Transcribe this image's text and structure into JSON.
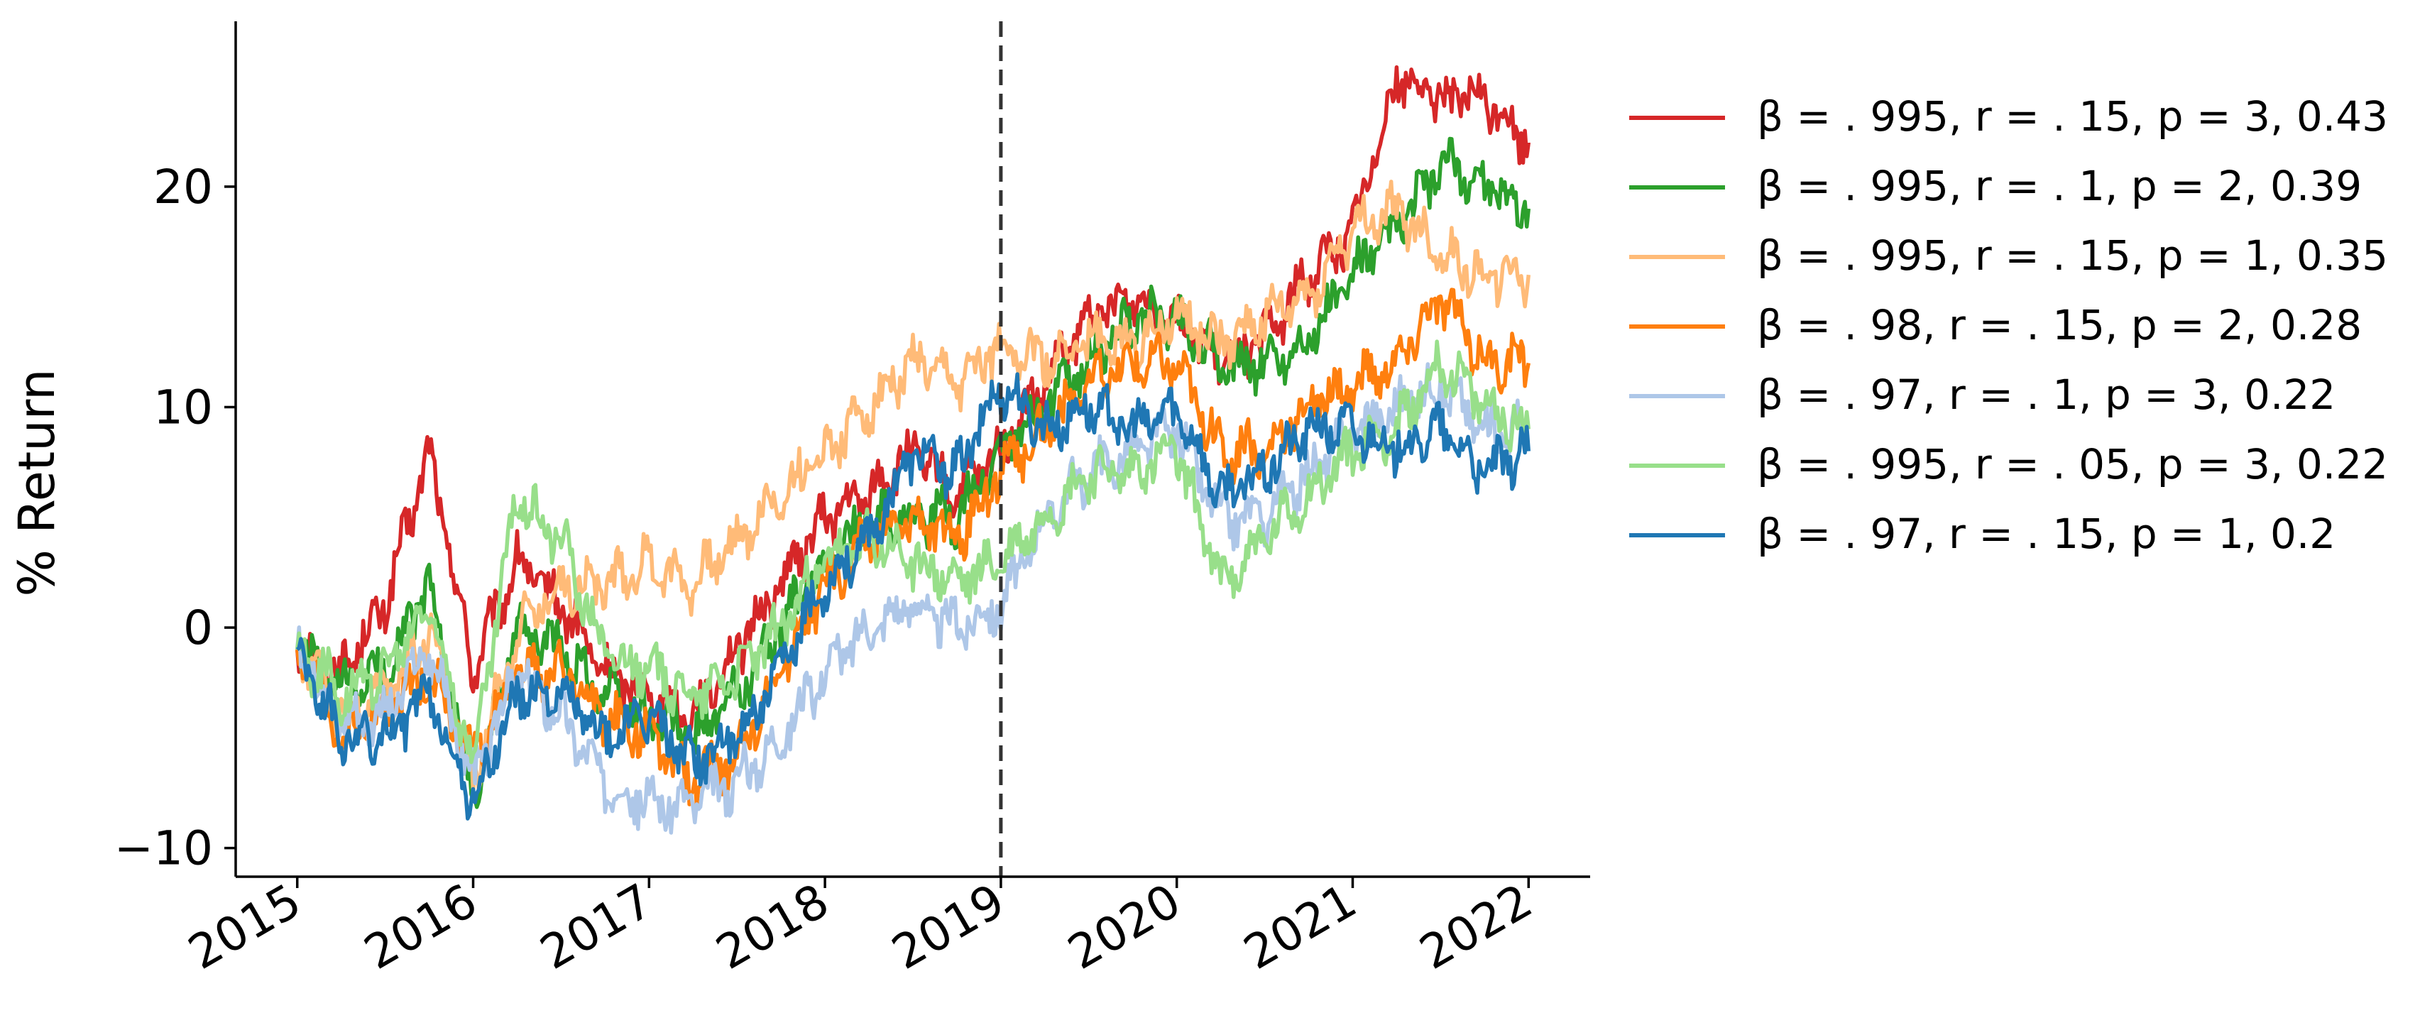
{
  "chart_data": {
    "type": "line",
    "title": "",
    "xlabel": "",
    "ylabel": "% Return",
    "xlim": [
      2014.65,
      2022.35
    ],
    "ylim": [
      -11.3,
      27.5
    ],
    "x_ticks": [
      {
        "value": 2015,
        "label": "2015"
      },
      {
        "value": 2016,
        "label": "2016"
      },
      {
        "value": 2017,
        "label": "2017"
      },
      {
        "value": 2018,
        "label": "2018"
      },
      {
        "value": 2019,
        "label": "2019"
      },
      {
        "value": 2020,
        "label": "2020"
      },
      {
        "value": 2021,
        "label": "2021"
      },
      {
        "value": 2022,
        "label": "2022"
      }
    ],
    "y_ticks": [
      {
        "value": -10,
        "label": "−10"
      },
      {
        "value": 0,
        "label": "0"
      },
      {
        "value": 10,
        "label": "10"
      },
      {
        "value": 20,
        "label": "20"
      }
    ],
    "vline": {
      "x": 2019.0,
      "style": "dashed",
      "color": "#333333"
    },
    "grid": false,
    "legend_position": "outside-right-top",
    "x": [
      2015.0,
      2015.25,
      2015.5,
      2015.75,
      2016.0,
      2016.25,
      2016.5,
      2016.75,
      2017.0,
      2017.25,
      2017.5,
      2017.75,
      2018.0,
      2018.25,
      2018.5,
      2018.75,
      2019.0,
      2019.25,
      2019.5,
      2019.75,
      2020.0,
      2020.25,
      2020.5,
      2020.75,
      2021.0,
      2021.25,
      2021.5,
      2021.75,
      2022.0
    ],
    "series": [
      {
        "name": "β = . 995, r = . 15, p = 3, 0.43",
        "color": "#d62728",
        "values": [
          -1,
          -2,
          1,
          8,
          -2,
          3,
          1,
          -2,
          -3,
          -4,
          -1,
          2,
          5,
          6,
          8,
          6,
          8,
          11,
          14,
          15,
          14,
          12,
          13,
          16,
          18,
          25,
          24,
          24,
          22
        ]
      },
      {
        "name": "β = . 995, r = . 1, p = 2, 0.39",
        "color": "#2ca02c",
        "values": [
          -1,
          -3,
          -2,
          2,
          -8,
          0,
          -1,
          -3,
          -4,
          -5,
          -3,
          0,
          3,
          5,
          5,
          5,
          8,
          10,
          12,
          14,
          14,
          12,
          12,
          13,
          16,
          18,
          21,
          20,
          19
        ]
      },
      {
        "name": "β = . 995, r = . 15, p = 1, 0.35",
        "color": "#ffbb78",
        "values": [
          -1,
          -4,
          -3,
          0,
          -7,
          0,
          2,
          2,
          3,
          2,
          4,
          6,
          8,
          10,
          12,
          11,
          13,
          12,
          13,
          13,
          14,
          13,
          14,
          15,
          18,
          19,
          17,
          16,
          16
        ]
      },
      {
        "name": "β = . 98, r = . 15, p = 2, 0.28",
        "color": "#ff7f0e",
        "values": [
          -1,
          -5,
          -4,
          -2,
          -6,
          -2,
          -2,
          -4,
          -5,
          -7,
          -6,
          -2,
          2,
          4,
          5,
          4,
          7,
          9,
          11,
          12,
          12,
          8,
          8,
          10,
          11,
          12,
          15,
          12,
          12
        ]
      },
      {
        "name": "β = . 97, r = . 1, p = 3, 0.22",
        "color": "#aec7e8",
        "values": [
          -1,
          -4,
          -4,
          -1,
          -7,
          -2,
          -4,
          -7,
          -8,
          -8,
          -7,
          -5,
          -2,
          0,
          1,
          0,
          1,
          5,
          7,
          8,
          9,
          5,
          5,
          7,
          9,
          10,
          11,
          9,
          9
        ]
      },
      {
        "name": "β = . 995, r = . 05, p = 3, 0.22",
        "color": "#98df8a",
        "values": [
          -1,
          -3,
          -2,
          1,
          -6,
          6,
          4,
          -1,
          -2,
          -3,
          -2,
          0,
          3,
          4,
          3,
          2,
          3,
          5,
          7,
          7,
          8,
          2,
          4,
          6,
          8,
          9,
          12,
          10,
          9
        ]
      },
      {
        "name": "β = . 97, r = . 15, p = 1, 0.2",
        "color": "#1f77b4",
        "values": [
          -1,
          -5,
          -5,
          -3,
          -8,
          -3,
          -3,
          -5,
          -4,
          -6,
          -5,
          -2,
          2,
          4,
          8,
          7,
          11,
          9,
          10,
          9,
          10,
          6,
          7,
          9,
          9,
          8,
          9,
          7,
          8
        ]
      }
    ]
  }
}
